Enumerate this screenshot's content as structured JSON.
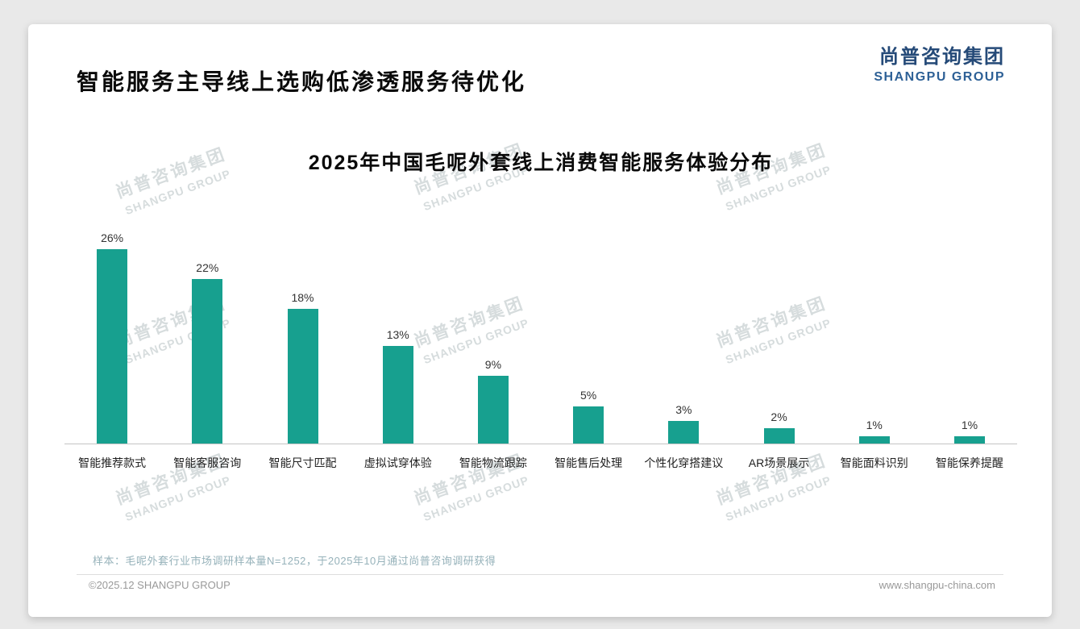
{
  "page": {
    "title": "智能服务主导线上选购低渗透服务待优化",
    "logo": {
      "cn": "尚普咨询集团",
      "en": "SHANGPU GROUP"
    },
    "watermark": {
      "cn": "尚普咨询集团",
      "en": "SHANGPU GROUP"
    },
    "footer": {
      "sample_note": "样本：毛呢外套行业市场调研样本量N=1252，于2025年10月通过尚普咨询调研获得",
      "copyright": "©2025.12 SHANGPU GROUP",
      "website": "www.shangpu-china.com"
    }
  },
  "colors": {
    "bar": "#17a08f",
    "logo_cn": "#254a78",
    "logo_en": "#2d6096",
    "watermark": "#d6dcdd",
    "baseline": "#c4c4c4"
  },
  "chart_data": {
    "type": "bar",
    "title": "2025年中国毛呢外套线上消费智能服务体验分布",
    "categories": [
      "智能推荐款式",
      "智能客服咨询",
      "智能尺寸匹配",
      "虚拟试穿体验",
      "智能物流跟踪",
      "智能售后处理",
      "个性化穿搭建议",
      "AR场景展示",
      "智能面料识别",
      "智能保养提醒"
    ],
    "values": [
      26,
      22,
      18,
      13,
      9,
      5,
      3,
      2,
      1,
      1
    ],
    "value_suffix": "%",
    "xlabel": "",
    "ylabel": "",
    "ylim": [
      0,
      28
    ],
    "grid": false,
    "legend": false
  }
}
